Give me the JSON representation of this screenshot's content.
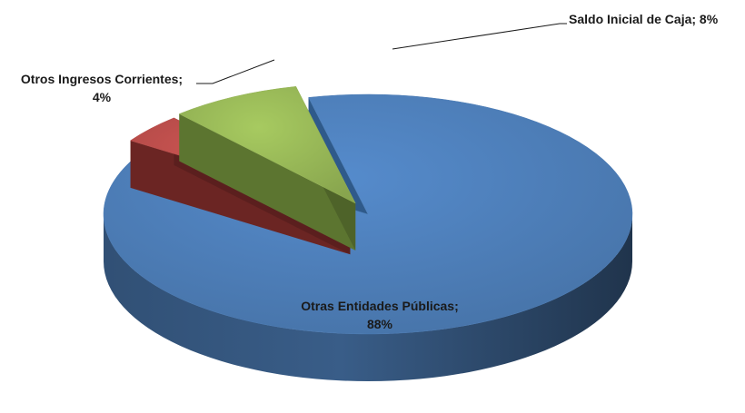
{
  "chart_data": {
    "type": "pie",
    "variant": "3d-exploded",
    "title": "",
    "slices": [
      {
        "name": "Otras Entidades Públicas",
        "value": 88,
        "color": "#4F81BD",
        "label_lines": [
          "Otras Entidades Públicas;",
          "88%"
        ]
      },
      {
        "name": "Otros Ingresos Corrientes",
        "value": 4,
        "color": "#C0504D",
        "label_lines": [
          "Otros Ingresos Corrientes;",
          "4%"
        ]
      },
      {
        "name": "Saldo Inicial de Caja",
        "value": 8,
        "color": "#9BBB59",
        "label_lines": [
          "Saldo Inicial de Caja; 8%"
        ]
      }
    ],
    "unit": "%",
    "legend": "none"
  }
}
